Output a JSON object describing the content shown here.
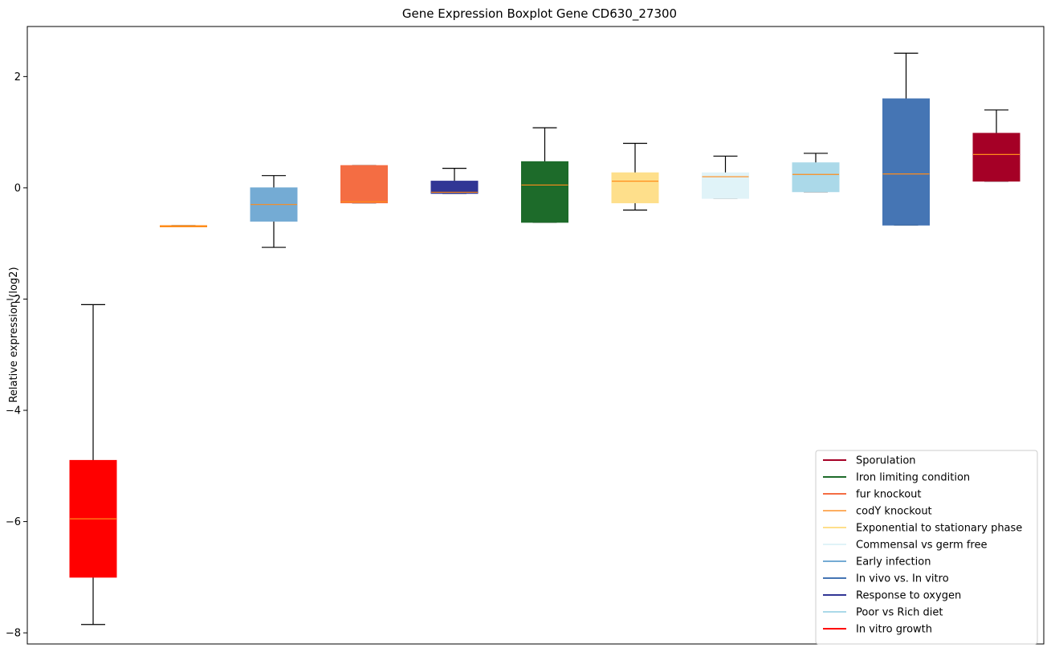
{
  "chart_data": {
    "type": "box",
    "title": "Gene Expression Boxplot Gene CD630_27300",
    "ylabel": "Relative expression (log2)",
    "xlabel": "",
    "ylim": [
      -8.2,
      2.9
    ],
    "yticks": [
      2,
      0,
      -2,
      -4,
      -6,
      -8
    ],
    "grid": false,
    "legend_position": "lower-right",
    "median_color": "#ff8c1a",
    "boxes": [
      {
        "color": "#ff0000",
        "whislo": -7.85,
        "q1": -7.0,
        "median": -5.95,
        "q3": -4.9,
        "whishi": -2.1
      },
      {
        "color": "#ff8c1a",
        "whislo": -0.7,
        "q1": -0.7,
        "median": -0.69,
        "q3": -0.68,
        "whishi": -0.68
      },
      {
        "color": "#74abd4",
        "whislo": -1.07,
        "q1": -0.6,
        "median": -0.3,
        "q3": 0.0,
        "whishi": 0.22
      },
      {
        "color": "#f46d43",
        "whislo": -0.27,
        "q1": -0.27,
        "median": -0.25,
        "q3": 0.4,
        "whishi": 0.4
      },
      {
        "color": "#313695",
        "whislo": -0.1,
        "q1": -0.1,
        "median": -0.08,
        "q3": 0.12,
        "whishi": 0.35
      },
      {
        "color": "#1d6b2a",
        "whislo": -0.62,
        "q1": -0.62,
        "median": 0.05,
        "q3": 0.47,
        "whishi": 1.08
      },
      {
        "color": "#fedf8b",
        "whislo": -0.4,
        "q1": -0.27,
        "median": 0.12,
        "q3": 0.27,
        "whishi": 0.8
      },
      {
        "color": "#e0f3f8",
        "whislo": -0.19,
        "q1": -0.19,
        "median": 0.2,
        "q3": 0.27,
        "whishi": 0.57
      },
      {
        "color": "#abd9e9",
        "whislo": -0.07,
        "q1": -0.07,
        "median": 0.24,
        "q3": 0.45,
        "whishi": 0.62
      },
      {
        "color": "#4575b4",
        "whislo": -0.67,
        "q1": -0.67,
        "median": 0.25,
        "q3": 1.6,
        "whishi": 2.42
      },
      {
        "color": "#a50026",
        "whislo": 0.12,
        "q1": 0.12,
        "median": 0.6,
        "q3": 0.98,
        "whishi": 1.4
      }
    ],
    "legend": [
      {
        "label": "Sporulation",
        "color": "#a50026"
      },
      {
        "label": "Iron limiting condition",
        "color": "#1d6b2a"
      },
      {
        "label": "fur knockout",
        "color": "#f46d43"
      },
      {
        "label": "codY knockout",
        "color": "#fdae61"
      },
      {
        "label": "Exponential to stationary phase",
        "color": "#fedf8b"
      },
      {
        "label": "Commensal vs germ free",
        "color": "#e0f3f8"
      },
      {
        "label": "Early infection",
        "color": "#74abd4"
      },
      {
        "label": "In vivo vs. In vitro",
        "color": "#4575b4"
      },
      {
        "label": "Response to oxygen",
        "color": "#313695"
      },
      {
        "label": "Poor vs Rich diet",
        "color": "#abd9e9"
      },
      {
        "label": "In vitro growth",
        "color": "#ff0000"
      }
    ]
  }
}
